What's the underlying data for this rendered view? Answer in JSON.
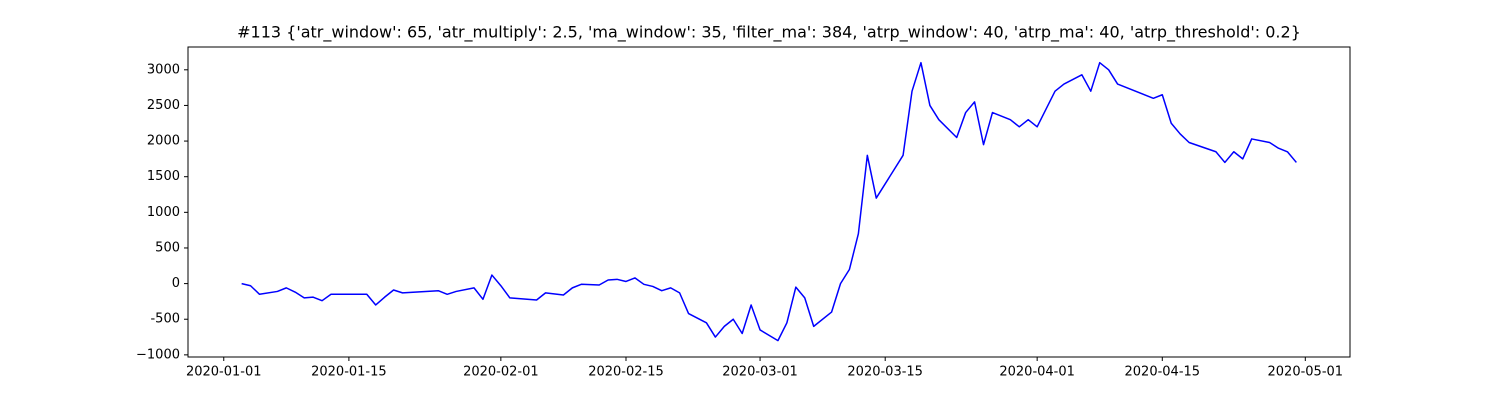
{
  "chart_data": {
    "type": "line",
    "title": "#113 {'atr_window': 65, 'atr_multiply': 2.5, 'ma_window': 35, 'filter_ma': 384, 'atrp_window': 40, 'atrp_ma': 40, 'atrp_threshold': 0.2}",
    "x": [
      "2020-01-03",
      "2020-01-04",
      "2020-01-05",
      "2020-01-07",
      "2020-01-08",
      "2020-01-09",
      "2020-01-10",
      "2020-01-11",
      "2020-01-12",
      "2020-01-13",
      "2020-01-17",
      "2020-01-18",
      "2020-01-19",
      "2020-01-20",
      "2020-01-21",
      "2020-01-25",
      "2020-01-26",
      "2020-01-27",
      "2020-01-29",
      "2020-01-30",
      "2020-01-31",
      "2020-02-01",
      "2020-02-02",
      "2020-02-05",
      "2020-02-06",
      "2020-02-08",
      "2020-02-09",
      "2020-02-10",
      "2020-02-12",
      "2020-02-13",
      "2020-02-14",
      "2020-02-15",
      "2020-02-16",
      "2020-02-17",
      "2020-02-18",
      "2020-02-19",
      "2020-02-20",
      "2020-02-21",
      "2020-02-22",
      "2020-02-24",
      "2020-02-25",
      "2020-02-26",
      "2020-02-27",
      "2020-02-28",
      "2020-02-29",
      "2020-03-01",
      "2020-03-03",
      "2020-03-04",
      "2020-03-05",
      "2020-03-06",
      "2020-03-07",
      "2020-03-09",
      "2020-03-10",
      "2020-03-11",
      "2020-03-12",
      "2020-03-13",
      "2020-03-14",
      "2020-03-17",
      "2020-03-18",
      "2020-03-19",
      "2020-03-20",
      "2020-03-21",
      "2020-03-23",
      "2020-03-24",
      "2020-03-25",
      "2020-03-26",
      "2020-03-27",
      "2020-03-29",
      "2020-03-30",
      "2020-03-31",
      "2020-04-01",
      "2020-04-03",
      "2020-04-04",
      "2020-04-06",
      "2020-04-07",
      "2020-04-08",
      "2020-04-09",
      "2020-04-10",
      "2020-04-14",
      "2020-04-15",
      "2020-04-16",
      "2020-04-17",
      "2020-04-18",
      "2020-04-21",
      "2020-04-22",
      "2020-04-23",
      "2020-04-24",
      "2020-04-25",
      "2020-04-27",
      "2020-04-28",
      "2020-04-29",
      "2020-04-30"
    ],
    "series": [
      {
        "color": "#0000ff",
        "values": [
          0,
          -30,
          -150,
          -110,
          -60,
          -120,
          -200,
          -190,
          -240,
          -150,
          -150,
          -300,
          -190,
          -90,
          -130,
          -100,
          -150,
          -110,
          -60,
          -220,
          120,
          -30,
          -200,
          -230,
          -130,
          -160,
          -60,
          -10,
          -20,
          50,
          60,
          30,
          80,
          -10,
          -40,
          -100,
          -60,
          -130,
          -420,
          -550,
          -750,
          -600,
          -500,
          -700,
          -300,
          -650,
          -800,
          -550,
          -50,
          -200,
          -600,
          -400,
          0,
          200,
          700,
          1800,
          1200,
          1800,
          2700,
          3100,
          2500,
          2300,
          2050,
          2400,
          2550,
          1950,
          2400,
          2300,
          2200,
          2300,
          2200,
          2700,
          2800,
          2930,
          2700,
          3100,
          3000,
          2800,
          2600,
          2650,
          2250,
          2100,
          1980,
          1850,
          1700,
          1850,
          1750,
          2030,
          1980,
          1900,
          1850,
          1700
        ]
      }
    ],
    "xlim": [
      "2019-12-28",
      "2020-05-06"
    ],
    "xticks": [
      "2020-01-01",
      "2020-01-15",
      "2020-02-01",
      "2020-02-15",
      "2020-03-01",
      "2020-03-15",
      "2020-04-01",
      "2020-04-15",
      "2020-05-01"
    ],
    "ylim": [
      -1030,
      3320
    ],
    "yticks": [
      {
        "value": -1000,
        "label": "−1000"
      },
      -500,
      0,
      500,
      1000,
      1500,
      2000,
      2500,
      3000
    ],
    "grid": false
  }
}
